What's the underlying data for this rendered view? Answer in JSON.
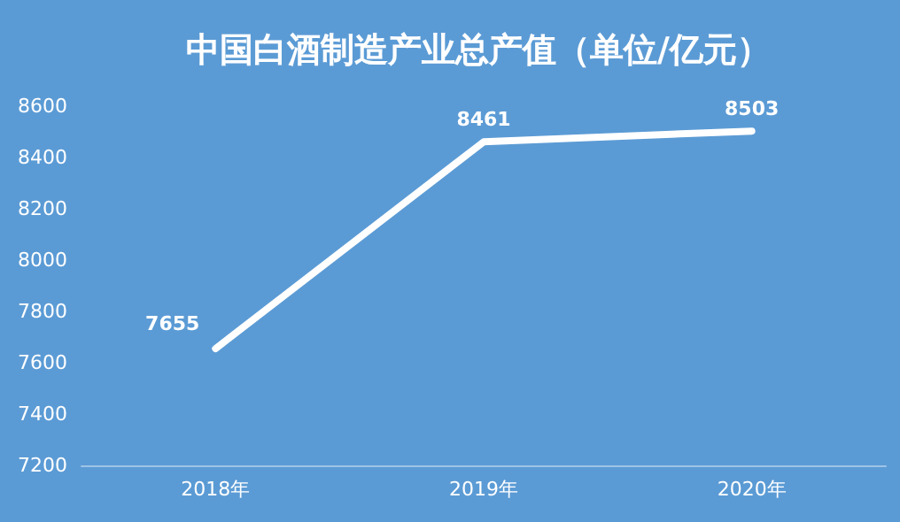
{
  "chart_data": {
    "type": "line",
    "title": "中国白酒制造产业总产值（单位/亿元）",
    "categories": [
      "2018年",
      "2019年",
      "2020年"
    ],
    "series": [
      {
        "color": "#ffffff",
        "values": [
          7655,
          8461,
          8503
        ]
      }
    ],
    "ylim": [
      7200,
      8600
    ],
    "yticks": [
      7200,
      7400,
      7600,
      7800,
      8000,
      8200,
      8400,
      8600
    ],
    "grid": false,
    "marker": "none",
    "line_style": "solid",
    "data_labels": true
  }
}
